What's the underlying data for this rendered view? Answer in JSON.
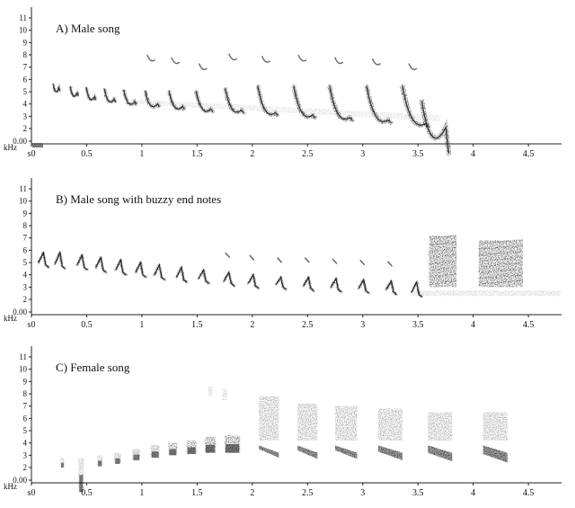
{
  "chart_data": [
    {
      "type": "spectrogram",
      "title": "A) Male song",
      "ylabel": "kHz",
      "ylim": [
        0,
        12
      ],
      "yticks": [
        "0.00",
        "2",
        "3",
        "4",
        "5",
        "6",
        "7",
        "8",
        "9",
        "10",
        "11"
      ],
      "xlim": [
        0,
        4.8
      ],
      "xticks": [
        "s0",
        "0.5",
        "1",
        "1.5",
        "2",
        "2.5",
        "3",
        "3.5",
        "4",
        "4.5"
      ],
      "notes": [
        {
          "t": 0.22,
          "peak": 5.6,
          "low": 5.0,
          "upper": 0
        },
        {
          "t": 0.38,
          "peak": 5.4,
          "low": 4.6,
          "upper": 0
        },
        {
          "t": 0.53,
          "peak": 5.3,
          "low": 4.3,
          "upper": 0
        },
        {
          "t": 0.7,
          "peak": 5.2,
          "low": 4.1,
          "upper": 0
        },
        {
          "t": 0.88,
          "peak": 5.1,
          "low": 3.9,
          "upper": 0
        },
        {
          "t": 1.08,
          "peak": 5.0,
          "low": 3.7,
          "upper": 7.5
        },
        {
          "t": 1.3,
          "peak": 5.0,
          "low": 3.5,
          "upper": 7.3
        },
        {
          "t": 1.55,
          "peak": 5.0,
          "low": 3.3,
          "upper": 6.8
        },
        {
          "t": 1.82,
          "peak": 5.2,
          "low": 3.2,
          "upper": 7.6
        },
        {
          "t": 2.12,
          "peak": 5.4,
          "low": 3.0,
          "upper": 7.4
        },
        {
          "t": 2.45,
          "peak": 5.4,
          "low": 2.8,
          "upper": 7.5
        },
        {
          "t": 2.78,
          "peak": 5.4,
          "low": 2.6,
          "upper": 7.3
        },
        {
          "t": 3.12,
          "peak": 5.4,
          "low": 2.4,
          "upper": 7.2
        },
        {
          "t": 3.45,
          "peak": 5.4,
          "low": 2.1,
          "upper": 6.8
        },
        {
          "t": 3.63,
          "peak": 4.2,
          "low": 1.8,
          "upper": 0
        }
      ]
    },
    {
      "type": "spectrogram",
      "title": "B) Male song with buzzy end notes",
      "ylabel": "kHz",
      "ylim": [
        0,
        12
      ],
      "yticks": [
        "0.00",
        "2",
        "3",
        "4",
        "5",
        "6",
        "7",
        "8",
        "9",
        "10",
        "11"
      ],
      "xlim": [
        0,
        4.8
      ],
      "xticks": [
        "s0",
        "0.5",
        "1",
        "1.5",
        "2",
        "2.5",
        "3",
        "3.5",
        "4",
        "4.5"
      ],
      "notes": [
        {
          "t": 0.1,
          "peak": 5.8,
          "low": 4.8,
          "upper": 0
        },
        {
          "t": 0.25,
          "peak": 5.8,
          "low": 4.7,
          "upper": 0
        },
        {
          "t": 0.45,
          "peak": 5.6,
          "low": 4.6,
          "upper": 0
        },
        {
          "t": 0.62,
          "peak": 5.4,
          "low": 4.4,
          "upper": 0
        },
        {
          "t": 0.8,
          "peak": 5.2,
          "low": 4.2,
          "upper": 0
        },
        {
          "t": 0.98,
          "peak": 5.0,
          "low": 4.0,
          "upper": 0
        },
        {
          "t": 1.15,
          "peak": 4.8,
          "low": 3.8,
          "upper": 0
        },
        {
          "t": 1.35,
          "peak": 4.6,
          "low": 3.6,
          "upper": 0
        },
        {
          "t": 1.55,
          "peak": 4.4,
          "low": 3.5,
          "upper": 0
        },
        {
          "t": 1.78,
          "peak": 4.2,
          "low": 3.3,
          "upper": 5.4
        },
        {
          "t": 2.0,
          "peak": 4.0,
          "low": 3.1,
          "upper": 5.2
        },
        {
          "t": 2.25,
          "peak": 3.8,
          "low": 3.0,
          "upper": 5.0
        },
        {
          "t": 2.5,
          "peak": 3.8,
          "low": 2.9,
          "upper": 5.0
        },
        {
          "t": 2.75,
          "peak": 3.7,
          "low": 2.8,
          "upper": 4.9
        },
        {
          "t": 3.0,
          "peak": 3.6,
          "low": 2.7,
          "upper": 4.8
        },
        {
          "t": 3.25,
          "peak": 3.5,
          "low": 2.6,
          "upper": 4.7
        },
        {
          "t": 3.48,
          "peak": 3.4,
          "low": 2.4,
          "upper": 0
        }
      ],
      "buzzy": [
        {
          "t0": 3.6,
          "t1": 3.85,
          "f0": 3.0,
          "f1": 7.2
        },
        {
          "t0": 4.05,
          "t1": 4.45,
          "f0": 3.0,
          "f1": 6.8
        }
      ],
      "noise_band": {
        "t0": 3.45,
        "t1": 4.8,
        "f": 2.5
      }
    },
    {
      "type": "spectrogram",
      "title": "C) Female song",
      "ylabel": "kHz",
      "ylim": [
        0,
        12
      ],
      "yticks": [
        "0.00",
        "2",
        "3",
        "4",
        "5",
        "6",
        "7",
        "8",
        "9",
        "10",
        "11"
      ],
      "xlim": [
        0,
        4.8
      ],
      "xticks": [
        "s0",
        "0.5",
        "1",
        "1.5",
        "2",
        "2.5",
        "3",
        "3.5",
        "4",
        "4.5"
      ],
      "notes": [
        {
          "t": 0.28,
          "f0": 2.0,
          "f1": 2.8,
          "w": 0.04
        },
        {
          "t": 0.45,
          "f0": 1.9,
          "f1": 2.8,
          "w": 0.05
        },
        {
          "t": 0.62,
          "f0": 2.1,
          "f1": 3.0,
          "w": 0.05
        },
        {
          "t": 0.78,
          "f0": 2.3,
          "f1": 3.2,
          "w": 0.06
        },
        {
          "t": 0.95,
          "f0": 2.6,
          "f1": 3.5,
          "w": 0.07
        },
        {
          "t": 1.12,
          "f0": 2.8,
          "f1": 3.8,
          "w": 0.08
        },
        {
          "t": 1.28,
          "f0": 3.0,
          "f1": 4.0,
          "w": 0.08
        },
        {
          "t": 1.45,
          "f0": 3.1,
          "f1": 4.2,
          "w": 0.09
        },
        {
          "t": 1.62,
          "f0": 3.2,
          "f1": 4.5,
          "w": 0.1
        },
        {
          "t": 1.82,
          "f0": 3.2,
          "f1": 4.6,
          "w": 0.14
        },
        {
          "t": 2.15,
          "f0": 2.9,
          "f1": 7.8,
          "w": 0.18
        },
        {
          "t": 2.5,
          "f0": 2.8,
          "f1": 7.2,
          "w": 0.18
        },
        {
          "t": 2.85,
          "f0": 2.8,
          "f1": 7.0,
          "w": 0.2
        },
        {
          "t": 3.25,
          "f0": 2.7,
          "f1": 6.8,
          "w": 0.22
        },
        {
          "t": 3.7,
          "f0": 2.6,
          "f1": 6.5,
          "w": 0.22
        },
        {
          "t": 4.2,
          "f0": 2.5,
          "f1": 6.5,
          "w": 0.22
        }
      ],
      "extra_marks": [
        {
          "t": 1.62,
          "f0": 7.8,
          "f1": 8.6,
          "w": 0.04
        },
        {
          "t": 1.75,
          "f0": 7.5,
          "f1": 8.4,
          "w": 0.04
        }
      ]
    }
  ]
}
